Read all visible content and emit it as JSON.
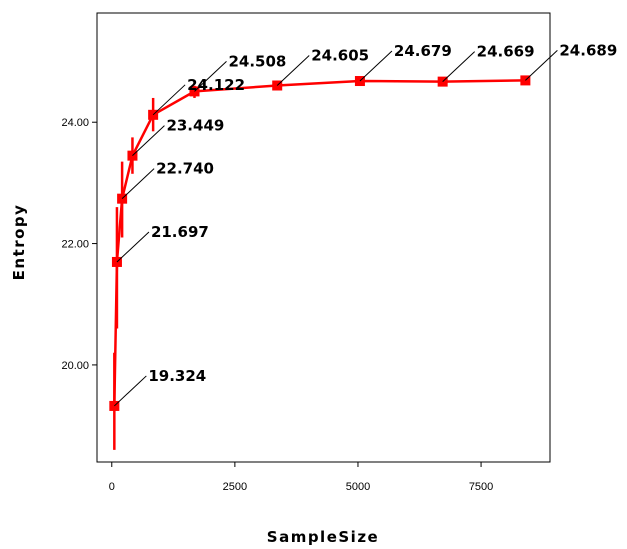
{
  "chart_data": {
    "type": "line",
    "xlabel": "SampleSize",
    "ylabel": "Entropy",
    "xlim": [
      -300,
      8900
    ],
    "ylim": [
      18.4,
      25.8
    ],
    "xticks": [
      0,
      2500,
      5000,
      7500
    ],
    "xtick_labels": [
      "0",
      "2500",
      "5000",
      "7500"
    ],
    "yticks": [
      20,
      22,
      24
    ],
    "ytick_labels": [
      "20.00",
      "22.00",
      "24.00"
    ],
    "grid": false,
    "legend": "none",
    "line_color": "#ff0000",
    "series": [
      {
        "x": [
          52,
          105,
          210,
          420,
          840,
          1680,
          3360,
          5040,
          6720,
          8400
        ],
        "values": [
          19.324,
          21.697,
          22.74,
          23.449,
          24.122,
          24.508,
          24.605,
          24.679,
          24.669,
          24.689
        ],
        "labels": [
          "19.324",
          "21.697",
          "22.740",
          "23.449",
          "24.122",
          "24.508",
          "24.605",
          "24.679",
          "24.669",
          "24.689"
        ],
        "error_low": [
          18.6,
          20.6,
          22.1,
          23.15,
          23.85,
          24.4,
          24.55,
          24.64,
          24.63,
          24.65
        ],
        "error_high": [
          20.2,
          22.6,
          23.35,
          23.75,
          24.4,
          24.6,
          24.66,
          24.72,
          24.71,
          24.73
        ]
      }
    ]
  }
}
